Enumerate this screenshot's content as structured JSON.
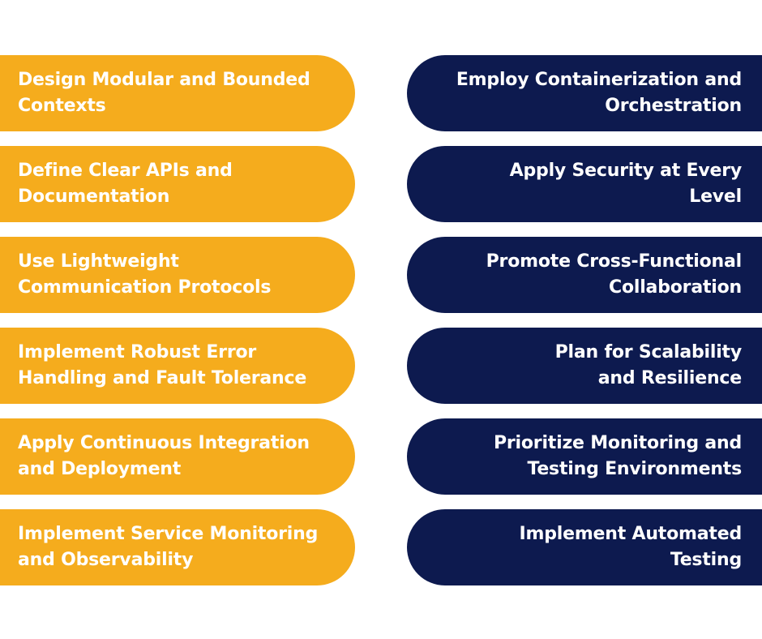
{
  "colors": {
    "left_pill": "#F5AC1D",
    "right_pill": "#0D1A4F",
    "text": "#FFFFFF",
    "background": "#FFFFFF"
  },
  "left_items": [
    "Design Modular and Bounded\nContexts",
    "Define Clear APIs and\nDocumentation",
    "Use Lightweight\nCommunication Protocols",
    "Implement Robust Error\nHandling and Fault Tolerance",
    "Apply Continuous Integration\nand Deployment",
    "Implement Service Monitoring\nand Observability"
  ],
  "right_items": [
    "Employ Containerization and\nOrchestration",
    "Apply Security at Every\nLevel",
    "Promote Cross-Functional\nCollaboration",
    "Plan for Scalability\nand Resilience",
    "Prioritize Monitoring and\nTesting Environments",
    "Implement Automated\nTesting"
  ]
}
